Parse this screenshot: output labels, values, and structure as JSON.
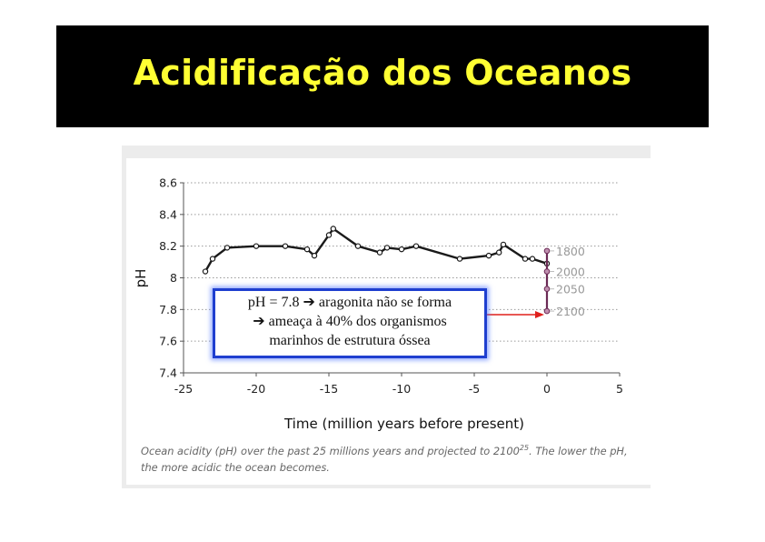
{
  "slide": {
    "title": "Acidificação dos Oceanos"
  },
  "callout": {
    "line1": "pH = 7.8 ➔ aragonita não se forma",
    "line2": "➔ ameaça à 40% dos organismos",
    "line3": "marinhos de estrutura óssea",
    "arrow_color": "#e0201c",
    "border_color": "#1f3fcf"
  },
  "caption": {
    "text_before": "Ocean acidity (pH) over the past 25 millions years and projected to 2100",
    "ref": "25",
    "text_after": ". The lower the pH, the more acidic the ocean becomes."
  },
  "chart_data": {
    "type": "line",
    "title": "",
    "xlabel": "Time (million years before present)",
    "ylabel": "pH",
    "xlim": [
      -25,
      5
    ],
    "ylim": [
      7.4,
      8.6
    ],
    "x_ticks": [
      "-25",
      "-20",
      "-15",
      "-10",
      "-5",
      "0",
      "5"
    ],
    "y_ticks": [
      "7.4",
      "7.6",
      "7.8",
      "8",
      "8.2",
      "8.4",
      "8.6"
    ],
    "grid": "horizontal dotted",
    "series": [
      {
        "color": "#1a1a1a",
        "x": [
          -23.5,
          -23,
          -22,
          -20,
          -18,
          -16.5,
          -16,
          -15,
          -14.7,
          -13,
          -11.5,
          -11,
          -10,
          -9,
          -6,
          -4,
          -3.3,
          -3,
          -1.5,
          -1,
          0
        ],
        "y": [
          8.04,
          8.12,
          8.19,
          8.2,
          8.2,
          8.18,
          8.14,
          8.27,
          8.31,
          8.2,
          8.16,
          8.19,
          8.18,
          8.2,
          8.12,
          8.14,
          8.16,
          8.21,
          8.12,
          8.12,
          8.09
        ]
      }
    ],
    "projections": {
      "color": "#6b2a55",
      "labels_color": "#999999",
      "points": [
        {
          "label": "1800",
          "x": 0,
          "y": 8.17
        },
        {
          "label": "2000",
          "x": 0,
          "y": 8.04
        },
        {
          "label": "2050",
          "x": 0,
          "y": 7.93
        },
        {
          "label": "2100",
          "x": 0,
          "y": 7.79
        }
      ]
    }
  }
}
